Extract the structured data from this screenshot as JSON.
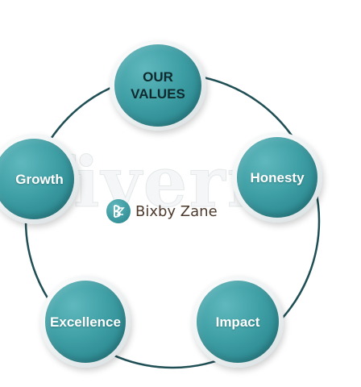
{
  "diagram": {
    "center": {
      "label": "OUR VALUES"
    },
    "values": [
      {
        "label": "Honesty"
      },
      {
        "label": "Impact"
      },
      {
        "label": "Excellence"
      },
      {
        "label": "Growth"
      }
    ]
  },
  "brand": {
    "name": "Bixby Zane",
    "icon": "bz-monogram-icon"
  },
  "watermark": {
    "text": "fiverr",
    "mark": "®"
  },
  "colors": {
    "node_teal": "#3e9fa5",
    "node_dark": "#237a82",
    "ring_line": "#1f4f55",
    "center_text": "#0f2a2e",
    "label_text": "#ffffff",
    "brand_text": "#4d3a2c"
  }
}
